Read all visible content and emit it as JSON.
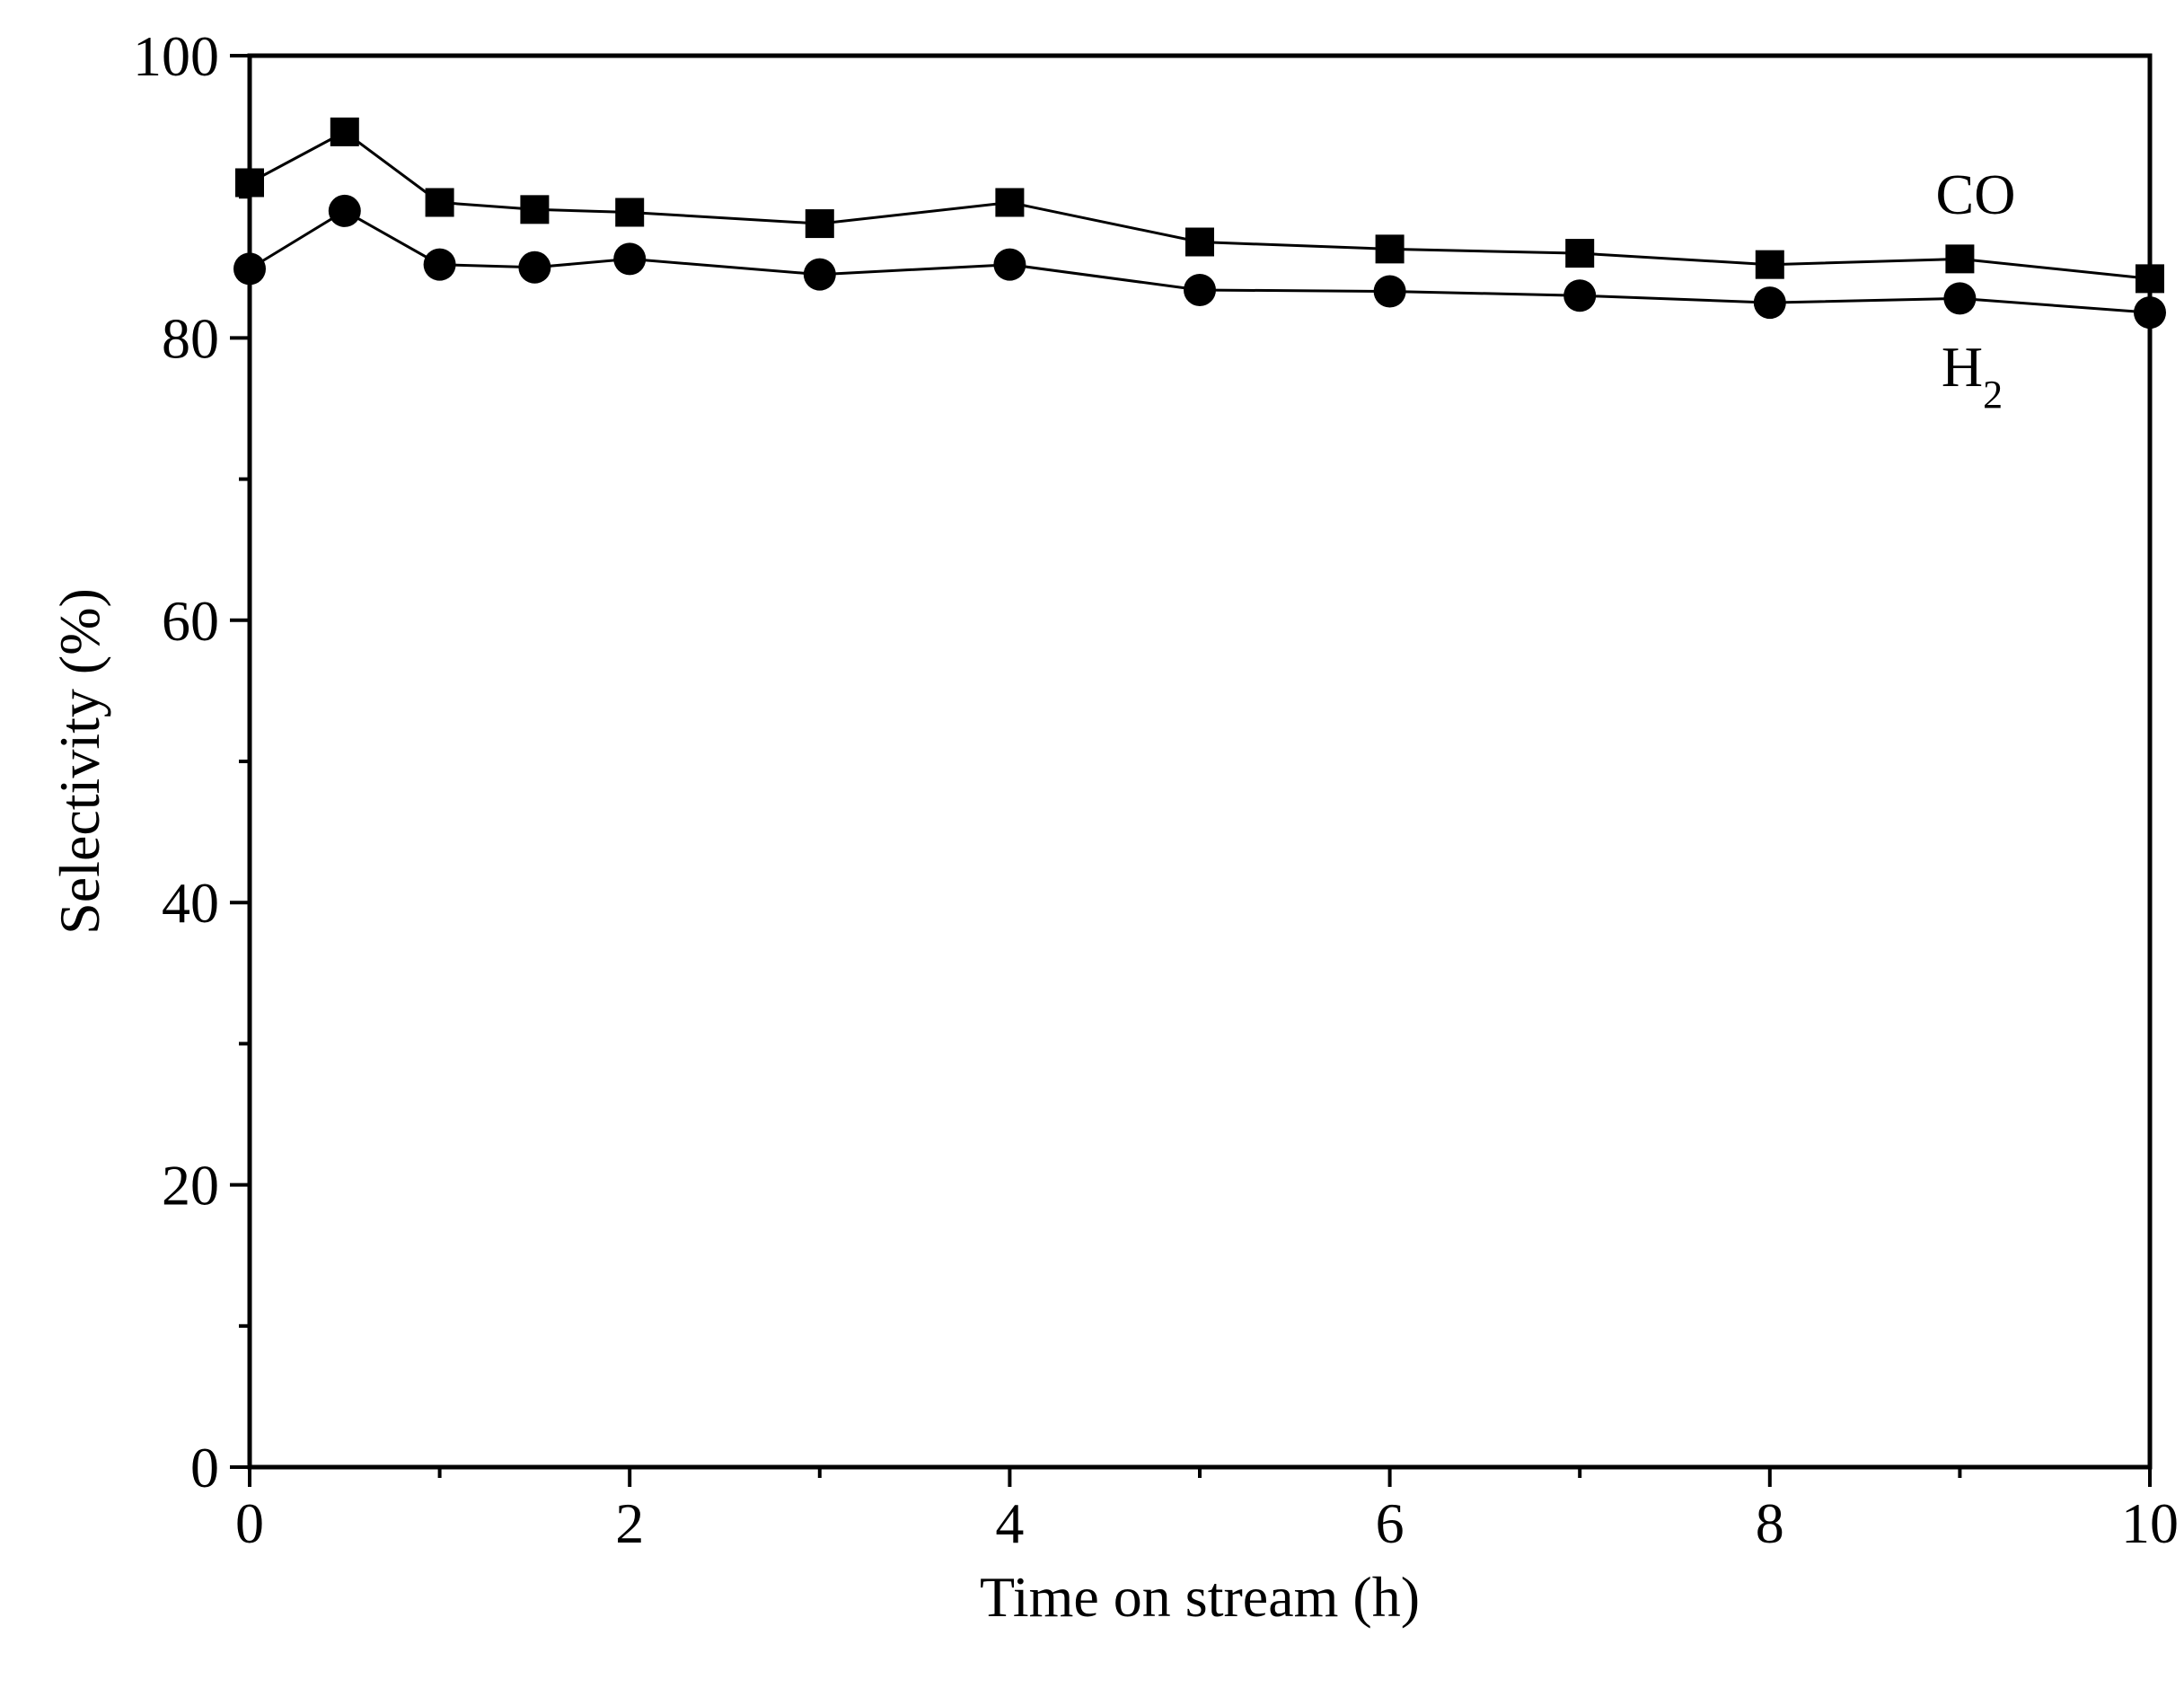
{
  "chart_data": {
    "type": "line",
    "title": "",
    "xlabel": "Time on stream (h)",
    "ylabel": "Selectivity (%)",
    "xlim": [
      0,
      10
    ],
    "ylim": [
      0,
      100
    ],
    "xticks": [
      0,
      2,
      4,
      6,
      8,
      10
    ],
    "yticks": [
      0,
      20,
      40,
      60,
      80,
      100
    ],
    "x_minor_step": 1,
    "y_minor_step": 10,
    "grid": false,
    "x": [
      0,
      0.5,
      1,
      1.5,
      2,
      3,
      4,
      5,
      6,
      7,
      8,
      9,
      10
    ],
    "series": [
      {
        "name": "CO",
        "marker": "square",
        "values": [
          91.0,
          94.6,
          89.6,
          89.1,
          88.9,
          88.1,
          89.6,
          86.8,
          86.3,
          86.0,
          85.2,
          85.6,
          84.2
        ]
      },
      {
        "name": "H2",
        "marker": "circle",
        "values": [
          84.9,
          89.0,
          85.2,
          85.0,
          85.6,
          84.5,
          85.2,
          83.4,
          83.3,
          83.0,
          82.5,
          82.8,
          81.8
        ]
      }
    ],
    "annotations": [
      {
        "text": "CO",
        "series": "CO"
      },
      {
        "text": "H",
        "subscript": "2",
        "series": "H2"
      }
    ],
    "colors": {
      "line": "#000000",
      "marker": "#000000",
      "axis": "#000000",
      "background": "#ffffff"
    }
  }
}
